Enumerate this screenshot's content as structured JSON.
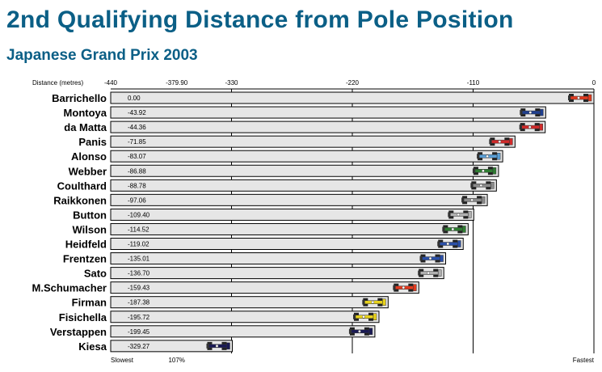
{
  "chart_data": {
    "type": "bar",
    "title": "2nd Qualifying Distance from Pole Position",
    "subtitle": "Japanese Grand Prix 2003",
    "xlabel": "Distance (metres)",
    "xlim": [
      -440,
      0
    ],
    "x_ticks": [
      -440,
      -379.9,
      -330,
      -220,
      -110,
      0
    ],
    "x_tick_labels": [
      "-440",
      "-379.90",
      "-330",
      "-220",
      "-110",
      "0"
    ],
    "gridlines": [
      -330,
      -220,
      -110
    ],
    "bottom_labels": [
      {
        "text": "Slowest",
        "x": -440
      },
      {
        "text": "107%",
        "x": -379.9
      },
      {
        "text": "Fastest",
        "x": 0
      }
    ],
    "categories": [
      "Barrichello",
      "Montoya",
      "da Matta",
      "Panis",
      "Alonso",
      "Webber",
      "Coulthard",
      "Raikkonen",
      "Button",
      "Wilson",
      "Heidfeld",
      "Frentzen",
      "Sato",
      "M.Schumacher",
      "Firman",
      "Fisichella",
      "Verstappen",
      "Kiesa"
    ],
    "values": [
      0.0,
      -43.92,
      -44.36,
      -71.85,
      -83.07,
      -86.88,
      -88.78,
      -97.06,
      -109.4,
      -114.52,
      -119.02,
      -135.01,
      -136.7,
      -159.43,
      -187.38,
      -195.72,
      -199.45,
      -329.27
    ],
    "value_labels": [
      "0.00",
      "-43.92",
      "-44.36",
      "-71.85",
      "-83.07",
      "-86.88",
      "-88.78",
      "-97.06",
      "-109.40",
      "-114.52",
      "-119.02",
      "-135.01",
      "-136.70",
      "-159.43",
      "-187.38",
      "-195.72",
      "-199.45",
      "-329.27"
    ],
    "car_icons": [
      "ferrari-car-icon",
      "williams-car-icon",
      "toyota-car-icon",
      "toyota-car-icon",
      "renault-car-icon",
      "jaguar-car-icon",
      "mclaren-car-icon",
      "mclaren-car-icon",
      "bar-car-icon",
      "jaguar-car-icon",
      "sauber-car-icon",
      "sauber-car-icon",
      "bar-car-icon",
      "ferrari-car-icon",
      "jordan-car-icon",
      "jordan-car-icon",
      "minardi-car-icon",
      "minardi-car-icon"
    ],
    "car_colors": [
      "#e23a1e",
      "#1f3f8f",
      "#d12a2a",
      "#d12a2a",
      "#5aa0d8",
      "#2f7d32",
      "#8a8a8a",
      "#8a8a8a",
      "#b0b0b0",
      "#2f7d32",
      "#2a4fa8",
      "#2a4fa8",
      "#b0b0b0",
      "#e23a1e",
      "#e8d21c",
      "#e8d21c",
      "#1a1a55",
      "#1a1a55"
    ],
    "bar_fill": "#e6e6e6",
    "grid": true,
    "legend": "none"
  }
}
